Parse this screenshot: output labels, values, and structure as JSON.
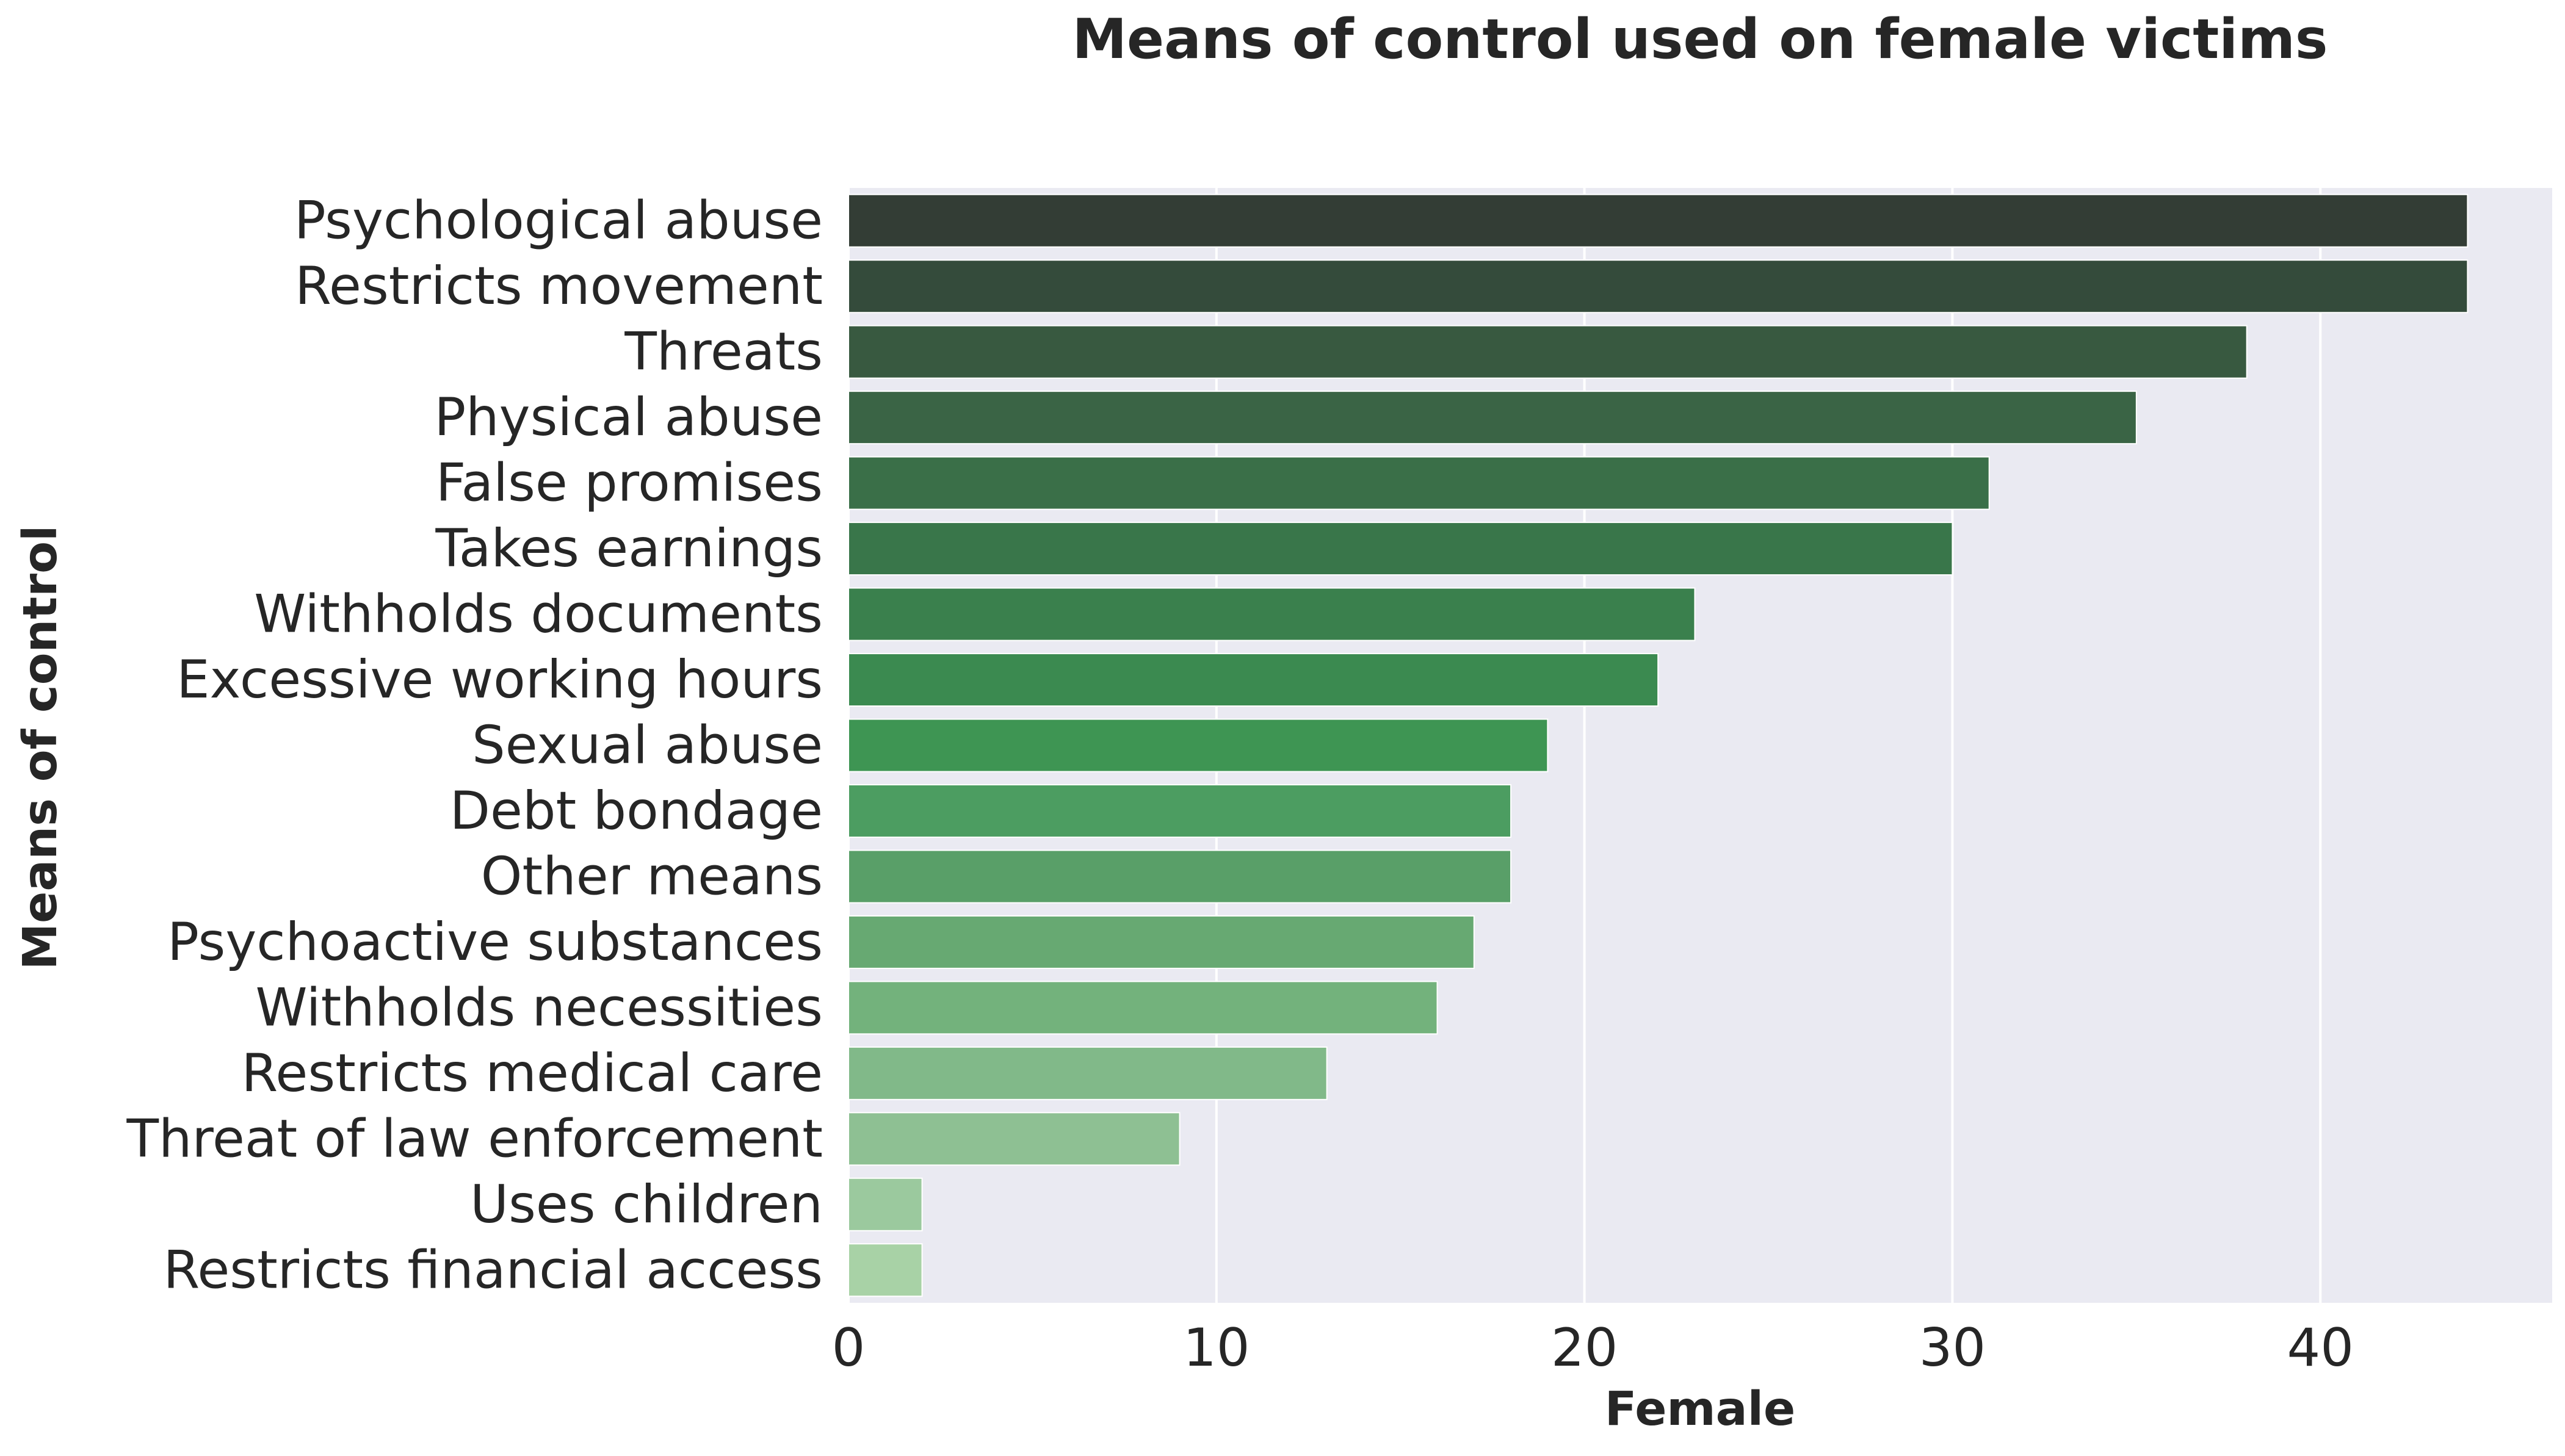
{
  "chart_data": {
    "type": "bar",
    "orientation": "horizontal",
    "title": "Means of control used on female victims",
    "xlabel": "Female",
    "ylabel": "Means of control",
    "categories": [
      "Psychological abuse",
      "Restricts movement",
      "Threats",
      "Physical abuse",
      "False promises",
      "Takes earnings",
      "Withholds documents",
      "Excessive working hours",
      "Sexual abuse",
      "Debt bondage",
      "Other means",
      "Psychoactive substances",
      "Withholds necessities",
      "Restricts medical care",
      "Threat of law enforcement",
      "Uses children",
      "Restricts financial access"
    ],
    "values": [
      44,
      44,
      38,
      35,
      31,
      30,
      23,
      22,
      19,
      18,
      18,
      17,
      16,
      13,
      9,
      2,
      2
    ],
    "xlim": [
      0,
      46.3
    ],
    "xticks": [
      0,
      10,
      20,
      30,
      40
    ],
    "grid": true,
    "legend": "none",
    "background_color": "#eaeaf2",
    "grid_color": "#ffffff",
    "bar_colors": [
      "#333d35",
      "#344b3b",
      "#385940",
      "#3a6445",
      "#3a6f48",
      "#39764a",
      "#3a804d",
      "#3b8a50",
      "#3e9553",
      "#4c9d61",
      "#599f68",
      "#67a972",
      "#73b27c",
      "#81b989",
      "#8ec093",
      "#9bc99e",
      "#a8d2a6"
    ]
  }
}
